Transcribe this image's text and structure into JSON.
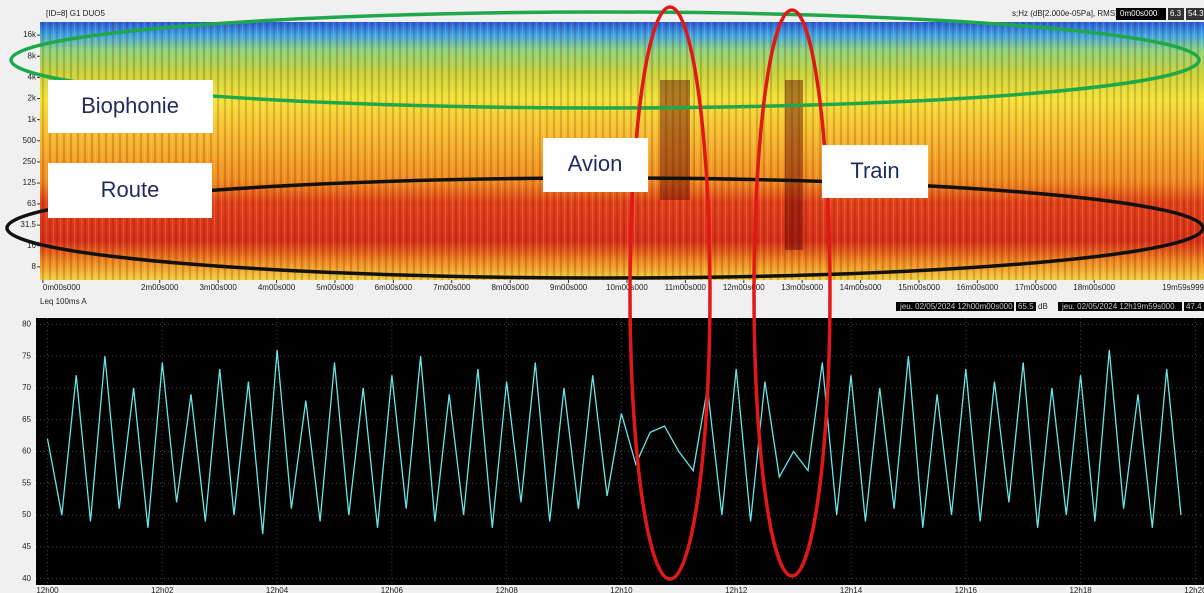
{
  "chart_data": [
    {
      "type": "spectrogram",
      "title": "[ID=8] G1 DUO5",
      "unit_label": "s;Hz (dB[2.000e-05Pa], RMS)",
      "cursor": {
        "time": "0m00s000",
        "values": [
          6.3,
          54.3
        ]
      },
      "log_scale": true,
      "ylim": [
        5.2,
        24600
      ],
      "yticks": [
        {
          "value": 16000,
          "label": "16k"
        },
        {
          "value": 8000,
          "label": "8k"
        },
        {
          "value": 4000,
          "label": "4k"
        },
        {
          "value": 2000,
          "label": "2k"
        },
        {
          "value": 1000,
          "label": "1k"
        },
        500,
        250,
        125,
        63,
        31.5,
        16,
        8
      ],
      "xlim": [
        -0.05,
        19.88
      ],
      "xticks": [
        {
          "value": 0,
          "label": "0m00s000"
        },
        {
          "value": 2,
          "label": "2m00s000"
        },
        {
          "value": 3,
          "label": "3m00s000"
        },
        {
          "value": 4,
          "label": "4m00s000"
        },
        {
          "value": 5,
          "label": "5m00s000"
        },
        {
          "value": 6,
          "label": "6m00s000"
        },
        {
          "value": 7,
          "label": "7m00s000"
        },
        {
          "value": 8,
          "label": "8m00s000"
        },
        {
          "value": 9,
          "label": "9m00s000"
        },
        {
          "value": 10,
          "label": "10m00s000"
        },
        {
          "value": 11,
          "label": "11m00s000"
        },
        {
          "value": 12,
          "label": "12m00s000"
        },
        {
          "value": 13,
          "label": "13m00s000"
        },
        {
          "value": 14,
          "label": "14m00s000"
        },
        {
          "value": 15,
          "label": "15m00s000"
        },
        {
          "value": 16,
          "label": "16m00s000"
        },
        {
          "value": 17,
          "label": "17m00s000"
        },
        {
          "value": 18,
          "label": "18m00s000"
        },
        {
          "value": 19.99,
          "label": "19m59s999"
        }
      ],
      "annotations": [
        "Biophonie",
        "Route",
        "Avion",
        "Train"
      ]
    },
    {
      "type": "line",
      "title": "Leq 100ms A",
      "cursors": [
        {
          "time": "jeu. 02/05/2024 12h00m00s000",
          "value": 65.5,
          "unit": "dB"
        },
        {
          "time": "jeu. 02/05/2024 12h19m59s000",
          "value": 47.4
        }
      ],
      "ylim": [
        39,
        81
      ],
      "yticks": [
        40,
        45,
        50,
        55,
        60,
        65,
        70,
        75,
        80
      ],
      "xlim": [
        -0.2,
        20.15
      ],
      "xticks": [
        {
          "value": 0,
          "label": "12h00"
        },
        {
          "value": 2,
          "label": "12h02"
        },
        {
          "value": 4,
          "label": "12h04"
        },
        {
          "value": 6,
          "label": "12h06"
        },
        {
          "value": 8,
          "label": "12h08"
        },
        {
          "value": 10,
          "label": "12h10"
        },
        {
          "value": 12,
          "label": "12h12"
        },
        {
          "value": 14,
          "label": "12h14"
        },
        {
          "value": 16,
          "label": "12h16"
        },
        {
          "value": 18,
          "label": "12h18"
        },
        {
          "value": 20,
          "label": "12h20"
        }
      ],
      "grid": true,
      "x": [
        0,
        0.25,
        0.5,
        0.75,
        1,
        1.25,
        1.5,
        1.75,
        2,
        2.25,
        2.5,
        2.75,
        3,
        3.25,
        3.5,
        3.75,
        4,
        4.25,
        4.5,
        4.75,
        5,
        5.25,
        5.5,
        5.75,
        6,
        6.25,
        6.5,
        6.75,
        7,
        7.25,
        7.5,
        7.75,
        8,
        8.25,
        8.5,
        8.75,
        9,
        9.25,
        9.5,
        9.75,
        10,
        10.25,
        10.5,
        10.75,
        11,
        11.25,
        11.5,
        11.75,
        12,
        12.25,
        12.5,
        12.75,
        13,
        13.25,
        13.5,
        13.75,
        14,
        14.25,
        14.5,
        14.75,
        15,
        15.25,
        15.5,
        15.75,
        16,
        16.25,
        16.5,
        16.75,
        17,
        17.25,
        17.5,
        17.75,
        18,
        18.25,
        18.5,
        18.75,
        19,
        19.25,
        19.5,
        19.75
      ],
      "series": [
        {
          "name": "Leq 100ms A",
          "color": "#66e6e6",
          "values": [
            62,
            50,
            72,
            49,
            75,
            51,
            70,
            48,
            74,
            52,
            69,
            49,
            73,
            50,
            71,
            47,
            76,
            51,
            68,
            49,
            74,
            50,
            70,
            48,
            72,
            51,
            75,
            49,
            69,
            50,
            73,
            48,
            71,
            52,
            74,
            49,
            70,
            51,
            72,
            53,
            66,
            58,
            63,
            64,
            60,
            57,
            70,
            50,
            73,
            49,
            71,
            56,
            60,
            57,
            74,
            50,
            72,
            49,
            70,
            51,
            75,
            48,
            69,
            50,
            73,
            49,
            71,
            52,
            74,
            48,
            70,
            50,
            72,
            49,
            76,
            51,
            69,
            48,
            73,
            50
          ]
        }
      ]
    }
  ]
}
